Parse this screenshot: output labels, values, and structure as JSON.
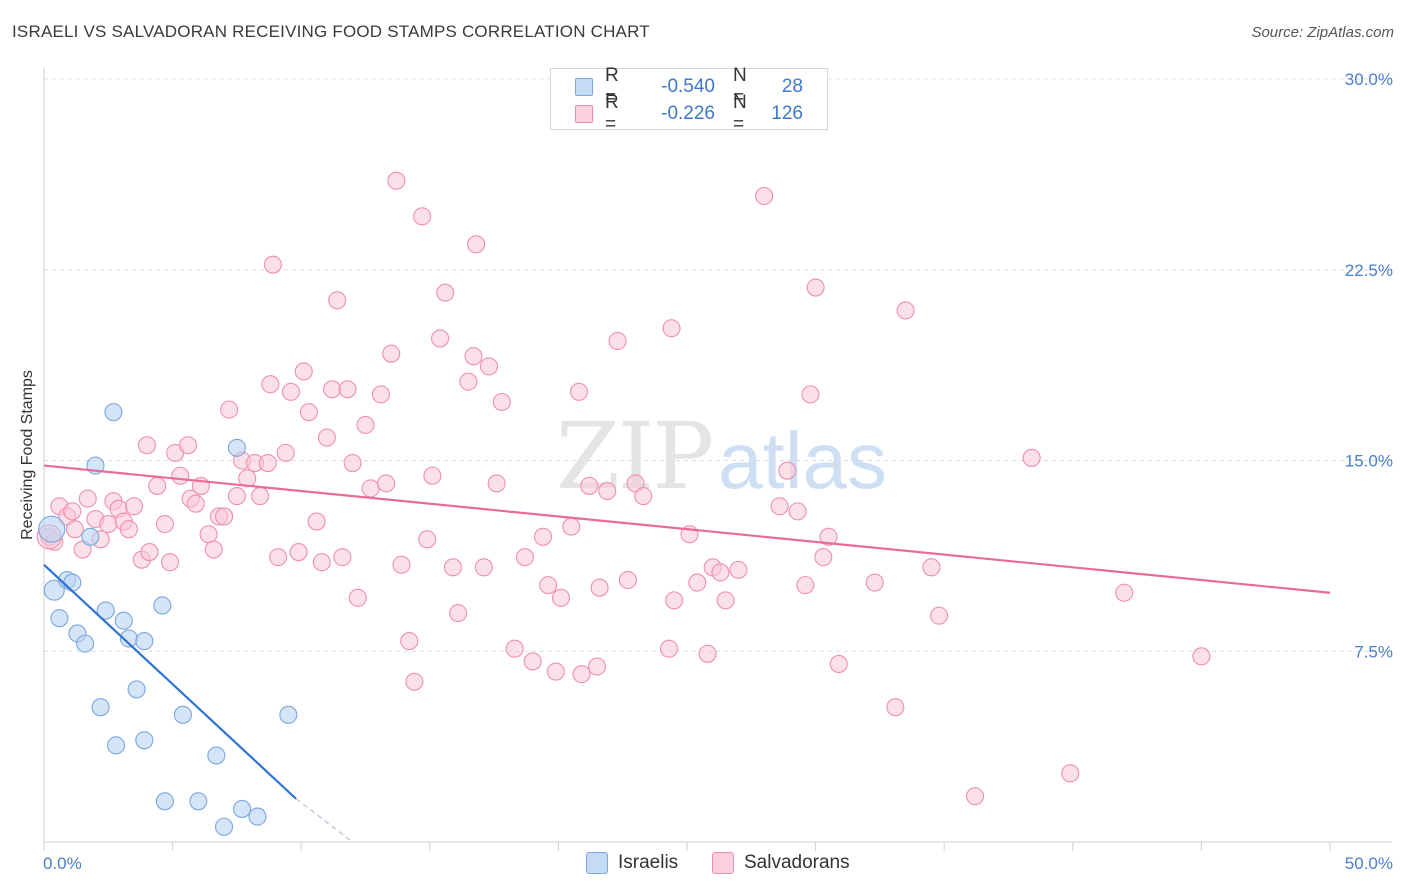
{
  "title": "ISRAELI VS SALVADORAN RECEIVING FOOD STAMPS CORRELATION CHART",
  "source": "Source: ZipAtlas.com",
  "watermark": {
    "zip": "ZIP",
    "atlas": "atlas"
  },
  "colors": {
    "israeli_fill": "#b9d3f3",
    "israeli_stroke": "#7ba6dd",
    "israeli_line": "#2f74d0",
    "salvadoran_fill": "#f9c6d6",
    "salvadoran_stroke": "#ee8fb0",
    "salvadoran_line": "#e96b98",
    "tick_text": "#4a7fc9",
    "grid": "#dcdcdc"
  },
  "legend_top": [
    {
      "r_label": "R =",
      "r_value": "-0.540",
      "n_label": "N =",
      "n_value": "28"
    },
    {
      "r_label": "R =",
      "r_value": "-0.226",
      "n_label": "N =",
      "n_value": "126"
    }
  ],
  "legend_bottom": [
    "Israelis",
    "Salvadorans"
  ],
  "chart_data": {
    "type": "scatter",
    "title": "ISRAELI VS SALVADORAN RECEIVING FOOD STAMPS CORRELATION CHART",
    "xlabel": "",
    "ylabel": "Receiving Food Stamps",
    "xlim": [
      0,
      50
    ],
    "ylim": [
      0,
      30
    ],
    "x_tick_labels": [
      "0.0%",
      "50.0%"
    ],
    "y_ticks": [
      7.5,
      15.0,
      22.5,
      30.0
    ],
    "y_tick_labels": [
      "7.5%",
      "15.0%",
      "22.5%",
      "30.0%"
    ],
    "grid": true,
    "legend_placement": "top-center",
    "series": [
      {
        "name": "Israelis",
        "points": [
          [
            0.3,
            12.3
          ],
          [
            0.4,
            9.9
          ],
          [
            0.6,
            8.8
          ],
          [
            0.9,
            10.3
          ],
          [
            1.1,
            10.2
          ],
          [
            1.3,
            8.2
          ],
          [
            1.6,
            7.8
          ],
          [
            1.8,
            12.0
          ],
          [
            2.0,
            14.8
          ],
          [
            2.2,
            5.3
          ],
          [
            2.4,
            9.1
          ],
          [
            2.7,
            16.9
          ],
          [
            2.8,
            3.8
          ],
          [
            3.1,
            8.7
          ],
          [
            3.3,
            8.0
          ],
          [
            3.6,
            6.0
          ],
          [
            3.9,
            7.9
          ],
          [
            3.9,
            4.0
          ],
          [
            4.6,
            9.3
          ],
          [
            4.7,
            1.6
          ],
          [
            5.4,
            5.0
          ],
          [
            6.0,
            1.6
          ],
          [
            6.7,
            3.4
          ],
          [
            7.0,
            0.6
          ],
          [
            7.5,
            15.5
          ],
          [
            7.7,
            1.3
          ],
          [
            8.3,
            1.0
          ],
          [
            9.5,
            5.0
          ]
        ],
        "trend": {
          "x": [
            0,
            9.8
          ],
          "y": [
            10.9,
            1.7
          ],
          "dashed_extension": {
            "x": [
              9.8,
              12
            ],
            "y": [
              1.7,
              -0.4
            ]
          }
        }
      },
      {
        "name": "Salvadorans",
        "points": [
          [
            0.2,
            12.0
          ],
          [
            0.4,
            11.8
          ],
          [
            0.6,
            13.2
          ],
          [
            0.9,
            12.8
          ],
          [
            1.1,
            13.0
          ],
          [
            1.2,
            12.3
          ],
          [
            1.5,
            11.5
          ],
          [
            1.7,
            13.5
          ],
          [
            2.0,
            12.7
          ],
          [
            2.2,
            11.9
          ],
          [
            2.5,
            12.5
          ],
          [
            2.7,
            13.4
          ],
          [
            2.9,
            13.1
          ],
          [
            3.1,
            12.6
          ],
          [
            3.3,
            12.3
          ],
          [
            3.5,
            13.2
          ],
          [
            3.8,
            11.1
          ],
          [
            4.0,
            15.6
          ],
          [
            4.1,
            11.4
          ],
          [
            4.4,
            14.0
          ],
          [
            4.7,
            12.5
          ],
          [
            4.9,
            11.0
          ],
          [
            5.1,
            15.3
          ],
          [
            5.3,
            14.4
          ],
          [
            5.6,
            15.6
          ],
          [
            5.7,
            13.5
          ],
          [
            5.9,
            13.3
          ],
          [
            6.1,
            14.0
          ],
          [
            6.4,
            12.1
          ],
          [
            6.6,
            11.5
          ],
          [
            6.8,
            12.8
          ],
          [
            7.0,
            12.8
          ],
          [
            7.2,
            17.0
          ],
          [
            7.5,
            13.6
          ],
          [
            7.7,
            15.0
          ],
          [
            7.9,
            14.3
          ],
          [
            8.2,
            14.9
          ],
          [
            8.4,
            13.6
          ],
          [
            8.7,
            14.9
          ],
          [
            8.8,
            18.0
          ],
          [
            8.9,
            22.7
          ],
          [
            9.1,
            11.2
          ],
          [
            9.4,
            15.3
          ],
          [
            9.6,
            17.7
          ],
          [
            9.9,
            11.4
          ],
          [
            10.1,
            18.5
          ],
          [
            10.3,
            16.9
          ],
          [
            10.6,
            12.6
          ],
          [
            10.8,
            11.0
          ],
          [
            11.0,
            15.9
          ],
          [
            11.2,
            17.8
          ],
          [
            11.4,
            21.3
          ],
          [
            11.6,
            11.2
          ],
          [
            11.8,
            17.8
          ],
          [
            12.0,
            14.9
          ],
          [
            12.2,
            9.6
          ],
          [
            12.5,
            16.4
          ],
          [
            12.7,
            13.9
          ],
          [
            13.1,
            17.6
          ],
          [
            13.3,
            14.1
          ],
          [
            13.5,
            19.2
          ],
          [
            13.7,
            26.0
          ],
          [
            13.9,
            10.9
          ],
          [
            14.2,
            7.9
          ],
          [
            14.4,
            6.3
          ],
          [
            14.7,
            24.6
          ],
          [
            14.9,
            11.9
          ],
          [
            15.1,
            14.4
          ],
          [
            15.4,
            19.8
          ],
          [
            15.6,
            21.6
          ],
          [
            15.9,
            10.8
          ],
          [
            16.1,
            9.0
          ],
          [
            16.5,
            18.1
          ],
          [
            16.7,
            19.1
          ],
          [
            16.8,
            23.5
          ],
          [
            17.1,
            10.8
          ],
          [
            17.3,
            18.7
          ],
          [
            17.6,
            14.1
          ],
          [
            17.8,
            17.3
          ],
          [
            18.3,
            7.6
          ],
          [
            18.7,
            11.2
          ],
          [
            19.0,
            7.1
          ],
          [
            19.4,
            12.0
          ],
          [
            19.6,
            10.1
          ],
          [
            19.9,
            6.7
          ],
          [
            20.1,
            9.6
          ],
          [
            20.5,
            12.4
          ],
          [
            20.8,
            17.7
          ],
          [
            20.9,
            6.6
          ],
          [
            21.2,
            14.0
          ],
          [
            21.5,
            6.9
          ],
          [
            21.6,
            10.0
          ],
          [
            21.9,
            13.8
          ],
          [
            22.3,
            19.7
          ],
          [
            22.7,
            10.3
          ],
          [
            23.0,
            14.1
          ],
          [
            23.3,
            13.6
          ],
          [
            24.3,
            7.6
          ],
          [
            24.4,
            20.2
          ],
          [
            24.5,
            9.5
          ],
          [
            25.1,
            12.1
          ],
          [
            25.4,
            10.2
          ],
          [
            25.8,
            7.4
          ],
          [
            26.0,
            10.8
          ],
          [
            26.3,
            10.6
          ],
          [
            26.5,
            9.5
          ],
          [
            27.0,
            10.7
          ],
          [
            28.0,
            25.4
          ],
          [
            28.6,
            13.2
          ],
          [
            28.9,
            14.6
          ],
          [
            29.3,
            13.0
          ],
          [
            29.6,
            10.1
          ],
          [
            29.8,
            17.6
          ],
          [
            30.0,
            21.8
          ],
          [
            30.3,
            11.2
          ],
          [
            30.5,
            12.0
          ],
          [
            30.9,
            7.0
          ],
          [
            32.3,
            10.2
          ],
          [
            33.1,
            5.3
          ],
          [
            33.5,
            20.9
          ],
          [
            34.5,
            10.8
          ],
          [
            34.8,
            8.9
          ],
          [
            36.2,
            1.8
          ],
          [
            38.4,
            15.1
          ],
          [
            42.0,
            9.8
          ],
          [
            45.0,
            7.3
          ],
          [
            39.9,
            2.7
          ]
        ],
        "trend": {
          "x": [
            0,
            50
          ],
          "y": [
            14.8,
            9.8
          ]
        }
      }
    ]
  }
}
